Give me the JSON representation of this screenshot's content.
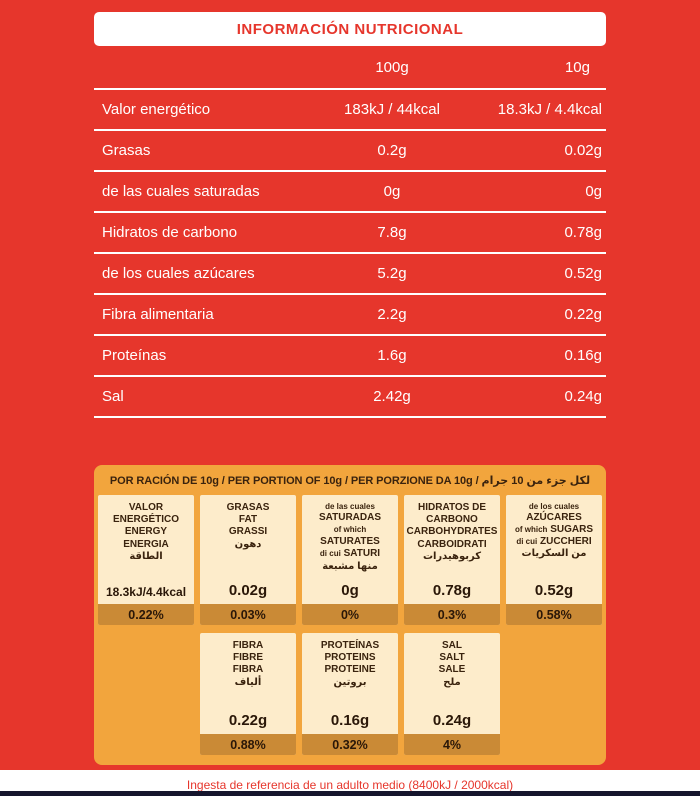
{
  "colors": {
    "red": "#e6362c",
    "panel_yellow": "#f2a53d",
    "card_cream": "#fdeccb",
    "percent_strip": "#ca8a36",
    "text_brown": "#3a230e"
  },
  "title": "INFORMACIÓN NUTRICIONAL",
  "table": {
    "headers": {
      "col100": "100g",
      "col10": "10g"
    },
    "rows": [
      {
        "label": "Valor energético",
        "v100": "183kJ / 44kcal",
        "v10": "18.3kJ / 4.4kcal"
      },
      {
        "label": "Grasas",
        "v100": "0.2g",
        "v10": "0.02g"
      },
      {
        "label": "de las cuales saturadas",
        "v100": "0g",
        "v10": "0g"
      },
      {
        "label": "Hidratos de carbono",
        "v100": "7.8g",
        "v10": "0.78g"
      },
      {
        "label": "de los cuales azúcares",
        "v100": "5.2g",
        "v10": "0.52g"
      },
      {
        "label": "Fibra alimentaria",
        "v100": "2.2g",
        "v10": "0.22g"
      },
      {
        "label": "Proteínas",
        "v100": "1.6g",
        "v10": "0.16g"
      },
      {
        "label": "Sal",
        "v100": "2.42g",
        "v10": "0.24g"
      }
    ]
  },
  "portion": {
    "header": "POR RACIÓN DE 10g / PER PORTION OF 10g / PER PORZIONE DA 10g / لكل جزء من 10 جرام",
    "cards": [
      {
        "lines": [
          "VALOR",
          "ENERGÉTICO",
          "ENERGY",
          "ENERGIA",
          "الطاقة"
        ],
        "value": "18.3kJ/4.4kcal",
        "percent": "0.22%"
      },
      {
        "lines": [
          "GRASAS",
          "FAT",
          "GRASSI",
          "دهون"
        ],
        "value": "0.02g",
        "percent": "0.03%"
      },
      {
        "lines": [
          "de las cuales",
          "SATURADAS",
          "of which",
          "SATURATES",
          "di cui",
          "SATURI",
          "منها مشبعة"
        ],
        "value": "0g",
        "percent": "0%"
      },
      {
        "lines": [
          "HIDRATOS DE",
          "CARBONO",
          "CARBOHYDRATES",
          "CARBOIDRATI",
          "كربوهيدرات"
        ],
        "value": "0.78g",
        "percent": "0.3%"
      },
      {
        "lines": [
          "de los cuales",
          "AZÚCARES",
          "of which",
          "SUGARS",
          "di cui",
          "ZUCCHERI",
          "من السكريات"
        ],
        "value": "0.52g",
        "percent": "0.58%"
      },
      {
        "lines": [
          "FIBRA",
          "FIBRE",
          "FIBRA",
          "ألياف"
        ],
        "value": "0.22g",
        "percent": "0.88%"
      },
      {
        "lines": [
          "PROTEÍNAS",
          "PROTEINS",
          "PROTEINE",
          "بروتين"
        ],
        "value": "0.16g",
        "percent": "0.32%"
      },
      {
        "lines": [
          "SAL",
          "SALT",
          "SALE",
          "ملح"
        ],
        "value": "0.24g",
        "percent": "4%"
      }
    ]
  },
  "footnote": "Ingesta de referencia de un adulto medio (8400kJ / 2000kcal)"
}
